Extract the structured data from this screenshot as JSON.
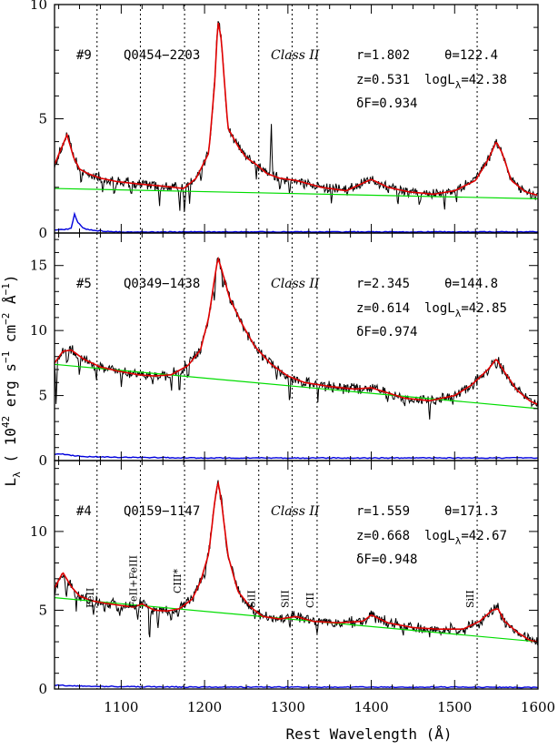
{
  "chart_data": {
    "type": "line",
    "xlabel": "Rest Wavelength (Å)",
    "ylabel": "L_λ ( 10^42 erg s^-1 cm^-2 Å^-1 )",
    "xlim": [
      1020,
      1600
    ],
    "xticks": [
      1100,
      1200,
      1300,
      1400,
      1500,
      1600
    ],
    "reference_lines": [
      {
        "x": 1071,
        "label": "FeII"
      },
      {
        "x": 1123,
        "label": "FeII+FeIII"
      },
      {
        "x": 1176,
        "label": "CIII*"
      },
      {
        "x": 1265,
        "label": "SiII"
      },
      {
        "x": 1305,
        "label": "SiII"
      },
      {
        "x": 1335,
        "label": "CII"
      },
      {
        "x": 1527,
        "label": "SiII"
      }
    ],
    "panels": [
      {
        "id": "#9",
        "name": "Q0454−2203",
        "class_label": "Class II",
        "r": "r=1.802",
        "theta": "θ=122.4",
        "z": "z=0.531",
        "logL": "logL",
        "logL_sub": "λ",
        "logL_val": "=42.38",
        "dF": "δF=0.934",
        "ylim": [
          0,
          10
        ],
        "yticks": [
          0,
          5,
          10
        ],
        "continuum": {
          "x": [
            1020,
            1600
          ],
          "y": [
            1.95,
            1.5
          ]
        },
        "fit": {
          "x": [
            1020,
            1035,
            1043,
            1050,
            1060,
            1075,
            1095,
            1120,
            1150,
            1175,
            1190,
            1205,
            1212,
            1216,
            1220,
            1228,
            1240,
            1250,
            1262,
            1275,
            1290,
            1310,
            1340,
            1370,
            1400,
            1420,
            1445,
            1475,
            1500,
            1525,
            1540,
            1550,
            1557,
            1568,
            1585,
            1600
          ],
          "y": [
            3.0,
            4.3,
            3.3,
            2.8,
            2.6,
            2.4,
            2.25,
            2.15,
            2.05,
            1.95,
            2.4,
            3.5,
            6.5,
            9.3,
            8.5,
            4.6,
            3.8,
            3.3,
            3.0,
            2.6,
            2.4,
            2.3,
            2.0,
            1.85,
            2.35,
            2.0,
            1.8,
            1.7,
            1.85,
            2.3,
            3.2,
            4.0,
            3.5,
            2.3,
            1.8,
            1.65
          ]
        },
        "error": {
          "x": [
            1020,
            1030,
            1040,
            1044,
            1048,
            1055,
            1065,
            1080,
            1100,
            1200,
            1400,
            1600
          ],
          "y": [
            0.15,
            0.15,
            0.2,
            0.85,
            0.45,
            0.2,
            0.12,
            0.08,
            0.05,
            0.05,
            0.05,
            0.05
          ]
        },
        "absorption": [
          [
            1052,
            0.9
          ],
          [
            1078,
            0.6
          ],
          [
            1092,
            0.7
          ],
          [
            1112,
            0.5
          ],
          [
            1146,
            0.8
          ],
          [
            1170,
            1.1
          ],
          [
            1176,
            1.3
          ],
          [
            1182,
            0.8
          ],
          [
            1196,
            0.6
          ],
          [
            1262,
            0.7
          ],
          [
            1280,
            -2.5
          ],
          [
            1290,
            0.6
          ],
          [
            1302,
            0.7
          ],
          [
            1352,
            0.6
          ],
          [
            1432,
            0.5
          ],
          [
            1458,
            0.6
          ],
          [
            1488,
            0.7
          ],
          [
            1502,
            0.5
          ]
        ]
      },
      {
        "id": "#5",
        "name": "Q0349−1438",
        "class_label": "Class II",
        "r": "r=2.345",
        "theta": "θ=144.8",
        "z": "z=0.614",
        "logL": "logL",
        "logL_sub": "λ",
        "logL_val": "=42.85",
        "dF": "δF=0.974",
        "ylim": [
          0,
          17.5
        ],
        "yticks": [
          0,
          5,
          10,
          15
        ],
        "continuum": {
          "x": [
            1020,
            1600
          ],
          "y": [
            7.4,
            4.0
          ]
        },
        "fit": {
          "x": [
            1020,
            1030,
            1040,
            1055,
            1075,
            1095,
            1120,
            1140,
            1160,
            1180,
            1195,
            1205,
            1212,
            1216,
            1220,
            1230,
            1245,
            1260,
            1280,
            1300,
            1320,
            1350,
            1380,
            1400,
            1420,
            1440,
            1470,
            1500,
            1520,
            1540,
            1550,
            1560,
            1575,
            1590,
            1600
          ],
          "y": [
            7.5,
            8.4,
            8.5,
            7.8,
            7.2,
            6.9,
            6.6,
            6.5,
            6.6,
            7.3,
            8.5,
            11.0,
            14.0,
            15.6,
            14.8,
            12.5,
            10.5,
            8.8,
            7.4,
            6.5,
            6.0,
            5.7,
            5.5,
            5.6,
            5.2,
            4.8,
            4.6,
            5.0,
            5.8,
            7.0,
            7.8,
            6.8,
            5.4,
            4.6,
            4.3
          ]
        },
        "error": {
          "x": [
            1020,
            1025,
            1040,
            1060,
            1100,
            1200,
            1300,
            1400,
            1500,
            1600
          ],
          "y": [
            0.5,
            0.55,
            0.4,
            0.3,
            0.25,
            0.2,
            0.2,
            0.2,
            0.2,
            0.2
          ]
        },
        "absorption": [
          [
            1022,
            3.5
          ],
          [
            1035,
            1.3
          ],
          [
            1050,
            1.5
          ],
          [
            1070,
            1.2
          ],
          [
            1100,
            1.2
          ],
          [
            1138,
            1.0
          ],
          [
            1160,
            1.4
          ],
          [
            1170,
            1.8
          ],
          [
            1180,
            1.2
          ],
          [
            1212,
            2.0
          ],
          [
            1222,
            1.5
          ],
          [
            1286,
            1.0
          ],
          [
            1302,
            2.2
          ],
          [
            1336,
            1.0
          ],
          [
            1420,
            0.8
          ],
          [
            1440,
            1.0
          ],
          [
            1470,
            1.2
          ],
          [
            1498,
            0.8
          ],
          [
            1550,
            1.0
          ]
        ]
      },
      {
        "id": "#4",
        "name": "Q0159−1147",
        "class_label": "Class II",
        "r": "r=1.559",
        "theta": "θ=171.3",
        "z": "z=0.668",
        "logL": "logL",
        "logL_sub": "λ",
        "logL_val": "=42.67",
        "dF": "δF=0.948",
        "ylim": [
          0,
          14.5
        ],
        "yticks": [
          0,
          5,
          10
        ],
        "continuum": {
          "x": [
            1020,
            1600
          ],
          "y": [
            5.8,
            3.0
          ]
        },
        "fit": {
          "x": [
            1020,
            1030,
            1040,
            1050,
            1065,
            1080,
            1100,
            1115,
            1125,
            1140,
            1155,
            1170,
            1185,
            1195,
            1205,
            1212,
            1216,
            1220,
            1228,
            1240,
            1255,
            1270,
            1290,
            1310,
            1330,
            1360,
            1390,
            1400,
            1420,
            1450,
            1480,
            1510,
            1530,
            1545,
            1552,
            1560,
            1575,
            1590,
            1600
          ],
          "y": [
            6.4,
            7.4,
            6.5,
            5.9,
            5.6,
            5.45,
            5.3,
            5.2,
            5.4,
            5.0,
            4.95,
            5.1,
            5.7,
            6.8,
            8.6,
            11.8,
            13.2,
            12.0,
            8.5,
            6.2,
            5.2,
            4.6,
            4.45,
            4.6,
            4.3,
            4.2,
            4.3,
            4.7,
            4.2,
            3.9,
            3.8,
            3.8,
            4.3,
            5.0,
            5.1,
            4.3,
            3.6,
            3.1,
            3.0
          ]
        },
        "error": {
          "x": [
            1020,
            1040,
            1100,
            1200,
            1300,
            1400,
            1500,
            1600
          ],
          "y": [
            0.25,
            0.2,
            0.15,
            0.12,
            0.12,
            0.12,
            0.12,
            0.1
          ]
        },
        "absorption": [
          [
            1034,
            1.8
          ],
          [
            1046,
            1.2
          ],
          [
            1067,
            1.0
          ],
          [
            1080,
            1.0
          ],
          [
            1098,
            0.8
          ],
          [
            1120,
            1.0
          ],
          [
            1134,
            2.5
          ],
          [
            1144,
            1.2
          ],
          [
            1160,
            1.2
          ],
          [
            1168,
            0.8
          ],
          [
            1200,
            0.8
          ],
          [
            1260,
            0.8
          ],
          [
            1302,
            0.6
          ],
          [
            1335,
            0.5
          ],
          [
            1420,
            0.6
          ],
          [
            1438,
            0.8
          ],
          [
            1470,
            0.5
          ],
          [
            1530,
            0.6
          ]
        ]
      }
    ]
  }
}
